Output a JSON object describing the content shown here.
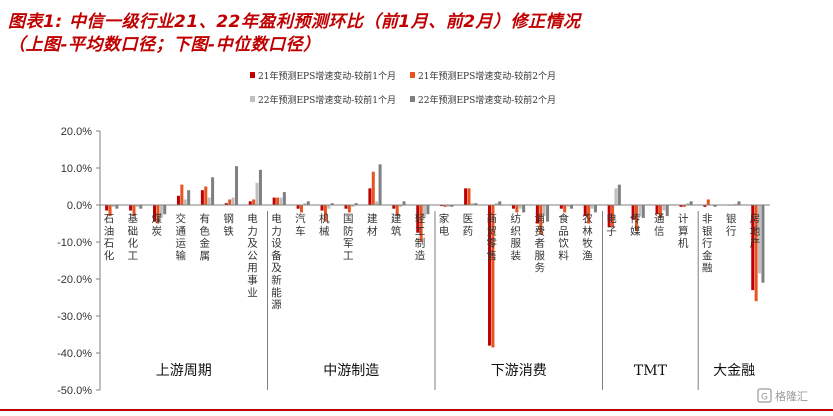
{
  "header": {
    "title_line1": "图表1:  中信一级行业21、22年盈利预测环比（前1月、前2月）修正情况",
    "title_line2": "（上图-平均数口径；下图-中位数口径）"
  },
  "watermark": "格隆汇",
  "colors": {
    "title": "#c00000",
    "s21_1m": "#c00000",
    "s21_2m": "#e8531f",
    "s22_1m": "#bfbfbf",
    "s22_2m": "#7f7f7f",
    "axis": "#7f7f7f",
    "bottom_line": "#c00000"
  },
  "chart_data": {
    "type": "bar",
    "ylim": [
      -50,
      20
    ],
    "y_ticks": [
      "20.0%",
      "10.0%",
      "0.0%",
      "-10.0%",
      "-20.0%",
      "-30.0%",
      "-40.0%",
      "-50.0%"
    ],
    "y_tick_values": [
      20,
      10,
      0,
      -10,
      -20,
      -30,
      -40,
      -50
    ],
    "legend": [
      "21年预测EPS增速变动-较前1个月",
      "21年预测EPS增速变动-较前2个月",
      "22年预测EPS增速变动-较前1个月",
      "22年预测EPS增速变动-较前2个月"
    ],
    "categories": [
      "石油石化",
      "基础化工",
      "煤炭",
      "交通运输",
      "有色金属",
      "钢铁",
      "电力及公用事业",
      "电力设备及新能源",
      "汽车",
      "机械",
      "国防军工",
      "建材",
      "建筑",
      "轻工制造",
      "家电",
      "医药",
      "商贸零售",
      "纺织服装",
      "消费者服务",
      "食品饮料",
      "农林牧渔",
      "电子",
      "传媒",
      "通信",
      "计算机",
      "非银行金融",
      "银行",
      "房地产"
    ],
    "groups": [
      {
        "label": "上游周期",
        "start": 0,
        "end": 6
      },
      {
        "label": "中游制造",
        "start": 7,
        "end": 13
      },
      {
        "label": "下游消费",
        "start": 14,
        "end": 20
      },
      {
        "label": "TMT",
        "start": 21,
        "end": 24
      },
      {
        "label": "大金融",
        "start": 25,
        "end": 27
      }
    ],
    "series": [
      {
        "name": "21年预测EPS增速变动-较前1个月",
        "values": [
          -1.5,
          -1.5,
          -4.5,
          2.5,
          4.0,
          0.5,
          1.0,
          2.0,
          -1.0,
          -1.5,
          -1.0,
          4.5,
          -1.0,
          -7.5,
          -0.3,
          4.5,
          -38.0,
          -1.0,
          -5.0,
          -1.0,
          -3.0,
          -6.0,
          -4.0,
          -2.5,
          -0.5,
          -0.5,
          0.0,
          -23.0
        ]
      },
      {
        "name": "21年预测EPS增速变动-较前2个月",
        "values": [
          -3.0,
          -3.0,
          -5.0,
          5.5,
          5.0,
          1.5,
          1.5,
          2.0,
          -2.0,
          -4.5,
          -2.0,
          9.0,
          -3.0,
          -10.0,
          -0.5,
          4.5,
          -38.5,
          -2.0,
          -8.0,
          -2.0,
          -5.0,
          -6.0,
          -7.0,
          -3.5,
          -0.5,
          1.5,
          0.0,
          -26.0
        ]
      },
      {
        "name": "22年预测EPS增速变动-较前1个月",
        "values": [
          -0.5,
          -0.5,
          -3.5,
          1.5,
          2.0,
          2.0,
          6.0,
          2.0,
          0.5,
          -1.0,
          -0.5,
          1.0,
          -0.5,
          -3.5,
          -0.5,
          0.5,
          0.5,
          -1.0,
          -3.0,
          -0.5,
          -1.0,
          4.5,
          -3.0,
          -1.5,
          0.5,
          0.0,
          0.3,
          -18.5
        ]
      },
      {
        "name": "22年预测EPS增速变动-较前2个月",
        "values": [
          -1.0,
          -1.0,
          -2.5,
          4.0,
          7.5,
          10.5,
          9.5,
          3.5,
          1.0,
          0.5,
          0.5,
          11.0,
          1.0,
          -2.5,
          -0.5,
          0.5,
          1.0,
          -2.0,
          -4.5,
          -1.0,
          -2.0,
          5.5,
          -3.5,
          -3.0,
          1.0,
          -0.5,
          1.0,
          -21.0
        ]
      }
    ]
  }
}
